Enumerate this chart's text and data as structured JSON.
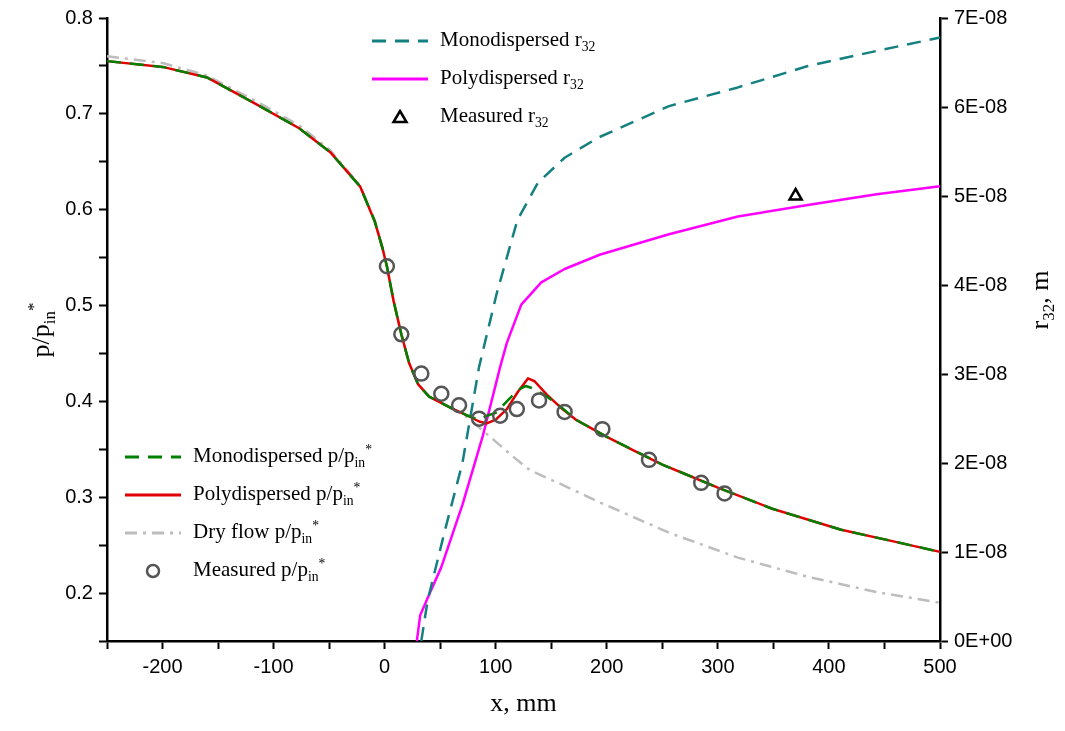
{
  "chart_data": {
    "type": "line",
    "xlabel": "x, mm",
    "ylabel": "p/p$_{in}$$^{*}$",
    "y2label": "r$_{32}$, m",
    "xlim": [
      -250,
      500
    ],
    "xticks": [
      {
        "value": -250,
        "label": null
      },
      -200,
      {
        "value": -150,
        "label": null
      },
      -100,
      {
        "value": -50,
        "label": null
      },
      0,
      {
        "value": 50,
        "label": null
      },
      100,
      {
        "value": 150,
        "label": null
      },
      200,
      {
        "value": 250,
        "label": null
      },
      300,
      {
        "value": 350,
        "label": null
      },
      400,
      {
        "value": 450,
        "label": null
      },
      500
    ],
    "ylim": [
      0.15,
      0.8
    ],
    "yticks": [
      {
        "value": 0.15,
        "label": null
      },
      0.2,
      {
        "value": 0.25,
        "label": null
      },
      0.3,
      {
        "value": 0.35,
        "label": null
      },
      0.4,
      {
        "value": 0.45,
        "label": null
      },
      0.5,
      {
        "value": 0.55,
        "label": null
      },
      0.6,
      {
        "value": 0.65,
        "label": null
      },
      0.7,
      {
        "value": 0.75,
        "label": null
      },
      0.8
    ],
    "y2lim": [
      0,
      7e-08
    ],
    "y2ticks": [
      {
        "value": 0,
        "label": "0E+00"
      },
      {
        "value": 1e-08,
        "label": "1E-08"
      },
      {
        "value": 2e-08,
        "label": "2E-08"
      },
      {
        "value": 3e-08,
        "label": "3E-08"
      },
      {
        "value": 4e-08,
        "label": "4E-08"
      },
      {
        "value": 5e-08,
        "label": "5E-08"
      },
      {
        "value": 6e-08,
        "label": "6E-08"
      },
      {
        "value": 7e-08,
        "label": "7E-08"
      }
    ],
    "grid": false,
    "legend": "top",
    "series": [
      {
        "name": "Monodispersed  p/p$_{in}$$^{*}$",
        "type": "line",
        "color": "#008000",
        "line_style": "dashed",
        "marker": "none",
        "x": [
          -250,
          -200,
          -160,
          -117,
          -77,
          -49,
          -22,
          -9,
          -2,
          2,
          8,
          15,
          22,
          30,
          40,
          60,
          75,
          85,
          92,
          100,
          110,
          120,
          127,
          135,
          146,
          160,
          172,
          200,
          224,
          250,
          271,
          300,
          349,
          411,
          450,
          500
        ],
        "values": [
          0.755,
          0.749,
          0.738,
          0.711,
          0.685,
          0.66,
          0.624,
          0.588,
          0.56,
          0.541,
          0.505,
          0.47,
          0.44,
          0.418,
          0.405,
          0.393,
          0.385,
          0.381,
          0.385,
          0.388,
          0.4,
          0.412,
          0.416,
          0.413,
          0.405,
          0.393,
          0.381,
          0.363,
          0.349,
          0.334,
          0.324,
          0.31,
          0.288,
          0.266,
          0.256,
          0.243
        ]
      },
      {
        "name": "Polydispersed p/p$_{in}$$^{*}$",
        "type": "line",
        "color": "#e00000",
        "line_style": "solid",
        "marker": "none",
        "x": [
          -250,
          -200,
          -160,
          -117,
          -77,
          -49,
          -22,
          -9,
          -2,
          2,
          8,
          15,
          22,
          30,
          40,
          60,
          75,
          85,
          92,
          100,
          110,
          120,
          129,
          135,
          146,
          160,
          172,
          200,
          224,
          250,
          271,
          300,
          349,
          411,
          450,
          500
        ],
        "values": [
          0.755,
          0.749,
          0.738,
          0.711,
          0.685,
          0.66,
          0.624,
          0.588,
          0.56,
          0.541,
          0.505,
          0.47,
          0.44,
          0.418,
          0.405,
          0.393,
          0.385,
          0.379,
          0.377,
          0.381,
          0.392,
          0.41,
          0.424,
          0.421,
          0.407,
          0.392,
          0.381,
          0.363,
          0.349,
          0.334,
          0.324,
          0.31,
          0.288,
          0.266,
          0.256,
          0.243
        ]
      },
      {
        "name": "Dry flow p/p$_{in}$$^{*}$",
        "type": "line",
        "color": "#bdbdbd",
        "line_style": "dashdot",
        "marker": "none",
        "x": [
          -250,
          -200,
          -160,
          -117,
          -77,
          -49,
          -22,
          -9,
          -2,
          2,
          8,
          15,
          22,
          30,
          40,
          60,
          75,
          88,
          100,
          115,
          131,
          160,
          193,
          256,
          318,
          381,
          443,
          500
        ],
        "values": [
          0.76,
          0.753,
          0.74,
          0.714,
          0.688,
          0.662,
          0.625,
          0.589,
          0.561,
          0.541,
          0.505,
          0.47,
          0.44,
          0.418,
          0.405,
          0.393,
          0.383,
          0.37,
          0.358,
          0.343,
          0.328,
          0.313,
          0.295,
          0.263,
          0.237,
          0.217,
          0.201,
          0.19
        ]
      },
      {
        "name": "Measured p/p$_{in}$$^{*}$",
        "type": "scatter",
        "color": "#555555",
        "marker": "circle",
        "x": [
          2,
          15,
          33,
          51,
          67,
          85,
          104,
          119,
          139,
          162,
          196,
          238,
          285,
          306
        ],
        "values": [
          0.541,
          0.47,
          0.429,
          0.408,
          0.396,
          0.382,
          0.385,
          0.392,
          0.401,
          0.389,
          0.371,
          0.339,
          0.315,
          0.304
        ]
      },
      {
        "name": "Monodispersed r$_{32}$",
        "type": "line",
        "axis": "y2",
        "color": "#158080",
        "line_style": "dashed",
        "marker": "none",
        "x": [
          33,
          38.6,
          54,
          70,
          85,
          101,
          119.5,
          138,
          162,
          193,
          256,
          318,
          381,
          443,
          500
        ],
        "values": [
          0,
          4.5e-09,
          1.23e-08,
          2e-08,
          3.08e-08,
          3.91e-08,
          4.73e-08,
          5.15e-08,
          5.43e-08,
          5.66e-08,
          6.01e-08,
          6.22e-08,
          6.46e-08,
          6.63e-08,
          6.78e-08
        ]
      },
      {
        "name": "Polydispersed r$_{32}$",
        "type": "line",
        "axis": "y2",
        "color": "#ff00ff",
        "line_style": "solid",
        "marker": "none",
        "x": [
          29,
          32,
          38.6,
          51,
          70,
          88.5,
          104,
          110,
          123,
          141,
          162,
          193.5,
          256,
          318,
          381,
          443,
          500
        ],
        "values": [
          0,
          2.9e-09,
          4.8e-09,
          8.3e-09,
          1.53e-08,
          2.31e-08,
          3.08e-08,
          3.35e-08,
          3.78e-08,
          4.03e-08,
          4.18e-08,
          4.34e-08,
          4.57e-08,
          4.77e-08,
          4.9e-08,
          5.02e-08,
          5.11e-08
        ]
      },
      {
        "name": "Measured r$_{32}$",
        "type": "scatter",
        "axis": "y2",
        "color": "#000000",
        "marker": "triangle",
        "x": [
          370
        ],
        "values": [
          5e-08
        ]
      }
    ]
  }
}
